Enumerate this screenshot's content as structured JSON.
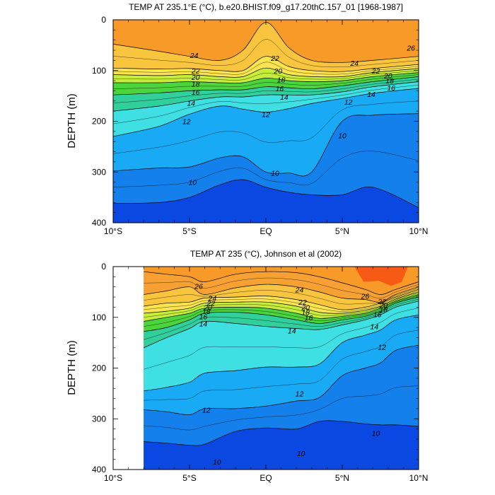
{
  "chart_data": [
    {
      "type": "contour",
      "title": "TEMP AT 235.1°E (°C), b.e20.BHIST.f09_g17.20thC.157_01 [1968-1987]",
      "ylabel": "DEPTH (m)",
      "xlabel": "",
      "xlim": [
        -10,
        10
      ],
      "ylim": [
        400,
        0
      ],
      "x_ticks": [
        -10,
        -5,
        0,
        5,
        10
      ],
      "x_tick_labels": [
        "10°S",
        "5°S",
        "EQ",
        "5°N",
        "10°N"
      ],
      "y_ticks": [
        0,
        100,
        200,
        300,
        400
      ],
      "y_tick_labels": [
        "0",
        "100",
        "200",
        "300",
        "400"
      ],
      "x_data_start": -10,
      "contour_levels": [
        8,
        9,
        10,
        11,
        12,
        13,
        14,
        15,
        16,
        17,
        18,
        19,
        20,
        21,
        22,
        23,
        24,
        25,
        26,
        27
      ],
      "isotherm_depths": {
        "x": [
          -10,
          -7,
          -5,
          -3,
          -1.5,
          0,
          1.5,
          3,
          5,
          7,
          10
        ],
        "24": [
          48,
          62,
          72,
          80,
          60,
          5,
          55,
          80,
          84,
          80,
          72
        ],
        "22": [
          95,
          97,
          96,
          100,
          100,
          72,
          92,
          100,
          102,
          96,
          88
        ],
        "20": [
          108,
          110,
          108,
          112,
          112,
          95,
          108,
          112,
          112,
          104,
          96
        ],
        "18": [
          124,
          124,
          122,
          124,
          124,
          115,
          120,
          122,
          120,
          112,
          104
        ],
        "16": [
          148,
          144,
          140,
          138,
          138,
          132,
          134,
          136,
          130,
          122,
          112
        ],
        "14": [
          180,
          170,
          160,
          152,
          152,
          148,
          148,
          148,
          142,
          132,
          122
        ],
        "12": [
          230,
          210,
          186,
          170,
          176,
          182,
          175,
          165,
          155,
          145,
          135
        ],
        "10": [
          298,
          292,
          290,
          272,
          270,
          300,
          302,
          300,
          200,
          188,
          185
        ],
        "9": [
          362,
          360,
          350,
          325,
          315,
          330,
          340,
          345,
          345,
          330,
          370
        ]
      },
      "contour_labels": [
        {
          "text": "26",
          "x": 9.5,
          "y": 55
        },
        {
          "text": "24",
          "x": -4.7,
          "y": 70
        },
        {
          "text": "24",
          "x": 5.8,
          "y": 85
        },
        {
          "text": "22",
          "x": -4.6,
          "y": 100
        },
        {
          "text": "22",
          "x": 0.6,
          "y": 75
        },
        {
          "text": "22",
          "x": 7.2,
          "y": 100
        },
        {
          "text": "20",
          "x": -4.6,
          "y": 113
        },
        {
          "text": "20",
          "x": 0.8,
          "y": 100
        },
        {
          "text": "20",
          "x": 8.0,
          "y": 110
        },
        {
          "text": "18",
          "x": -4.6,
          "y": 126
        },
        {
          "text": "18",
          "x": 1.0,
          "y": 118
        },
        {
          "text": "18",
          "x": 8.1,
          "y": 120
        },
        {
          "text": "16",
          "x": -4.6,
          "y": 142
        },
        {
          "text": "16",
          "x": 0.9,
          "y": 135
        },
        {
          "text": "16",
          "x": 8.2,
          "y": 134
        },
        {
          "text": "14",
          "x": -4.9,
          "y": 164
        },
        {
          "text": "14",
          "x": 1.2,
          "y": 152
        },
        {
          "text": "14",
          "x": 6.9,
          "y": 146
        },
        {
          "text": "12",
          "x": -5.2,
          "y": 200
        },
        {
          "text": "12",
          "x": 0.0,
          "y": 186
        },
        {
          "text": "12",
          "x": 5.4,
          "y": 162
        },
        {
          "text": "10",
          "x": -4.8,
          "y": 320
        },
        {
          "text": "10",
          "x": 0.6,
          "y": 302
        },
        {
          "text": "10",
          "x": 5.0,
          "y": 228
        }
      ]
    },
    {
      "type": "contour",
      "title": "TEMP AT 235 (°C), Johnson et al (2002)",
      "ylabel": "DEPTH (m)",
      "xlabel": "",
      "xlim": [
        -10,
        10
      ],
      "ylim": [
        400,
        0
      ],
      "x_ticks": [
        -10,
        -5,
        0,
        5,
        10
      ],
      "x_tick_labels": [
        "10°S",
        "5°S",
        "EQ",
        "5°N",
        "10°N"
      ],
      "y_ticks": [
        0,
        100,
        200,
        300,
        400
      ],
      "y_tick_labels": [
        "0",
        "100",
        "200",
        "300",
        "400"
      ],
      "x_data_start": -8,
      "contour_levels": [
        8,
        9,
        10,
        11,
        12,
        13,
        14,
        15,
        16,
        17,
        18,
        19,
        20,
        21,
        22,
        23,
        24,
        25,
        26,
        27
      ],
      "isotherm_depths": {
        "x": [
          -8,
          -6.5,
          -5,
          -4,
          -2,
          0,
          2,
          3.5,
          5,
          6.5,
          7.5,
          8.5,
          10
        ],
        "26": [
          10,
          15,
          20,
          30,
          15,
          10,
          12,
          20,
          32,
          45,
          55,
          45,
          30
        ],
        "24": [
          55,
          48,
          40,
          55,
          42,
          35,
          40,
          50,
          62,
          65,
          70,
          55,
          40
        ],
        "22": [
          78,
          72,
          70,
          62,
          60,
          58,
          65,
          75,
          85,
          80,
          72,
          60,
          45
        ],
        "20": [
          92,
          88,
          82,
          72,
          70,
          70,
          78,
          90,
          92,
          86,
          78,
          64,
          50
        ],
        "18": [
          108,
          100,
          92,
          82,
          80,
          82,
          92,
          102,
          98,
          92,
          82,
          68,
          55
        ],
        "16": [
          128,
          120,
          105,
          92,
          90,
          95,
          105,
          112,
          105,
          98,
          88,
          72,
          60
        ],
        "14": [
          160,
          140,
          122,
          108,
          112,
          118,
          122,
          124,
          115,
          105,
          95,
          80,
          68
        ],
        "12": [
          245,
          238,
          228,
          210,
          205,
          198,
          198,
          192,
          150,
          135,
          125,
          105,
          95
        ],
        "10": [
          282,
          286,
          292,
          280,
          280,
          275,
          265,
          258,
          215,
          200,
          190,
          165,
          155
        ],
        "9": [
          345,
          348,
          352,
          350,
          325,
          318,
          320,
          305,
          305,
          310,
          312,
          312,
          315
        ]
      },
      "contour_labels": [
        {
          "text": "26",
          "x": -4.4,
          "y": 38
        },
        {
          "text": "24",
          "x": -3.5,
          "y": 62
        },
        {
          "text": "24",
          "x": 2.2,
          "y": 45
        },
        {
          "text": "26",
          "x": 6.5,
          "y": 58
        },
        {
          "text": "22",
          "x": -3.6,
          "y": 72
        },
        {
          "text": "22",
          "x": 2.4,
          "y": 70
        },
        {
          "text": "22",
          "x": 7.6,
          "y": 68
        },
        {
          "text": "20",
          "x": -3.8,
          "y": 80
        },
        {
          "text": "20",
          "x": 2.6,
          "y": 80
        },
        {
          "text": "20",
          "x": 7.7,
          "y": 76
        },
        {
          "text": "18",
          "x": -3.9,
          "y": 88
        },
        {
          "text": "18",
          "x": 2.6,
          "y": 90
        },
        {
          "text": "18",
          "x": 7.7,
          "y": 84
        },
        {
          "text": "16",
          "x": -4.1,
          "y": 98
        },
        {
          "text": "16",
          "x": 2.8,
          "y": 100
        },
        {
          "text": "16",
          "x": 7.3,
          "y": 94
        },
        {
          "text": "14",
          "x": -4.1,
          "y": 112
        },
        {
          "text": "14",
          "x": 1.7,
          "y": 126
        },
        {
          "text": "14",
          "x": 7.1,
          "y": 118
        },
        {
          "text": "12",
          "x": 7.6,
          "y": 158
        },
        {
          "text": "12",
          "x": 2.2,
          "y": 250
        },
        {
          "text": "12",
          "x": -3.9,
          "y": 282
        },
        {
          "text": "10",
          "x": 7.2,
          "y": 328
        },
        {
          "text": "10",
          "x": 2.3,
          "y": 368
        },
        {
          "text": "10",
          "x": -3.2,
          "y": 385
        }
      ]
    }
  ]
}
